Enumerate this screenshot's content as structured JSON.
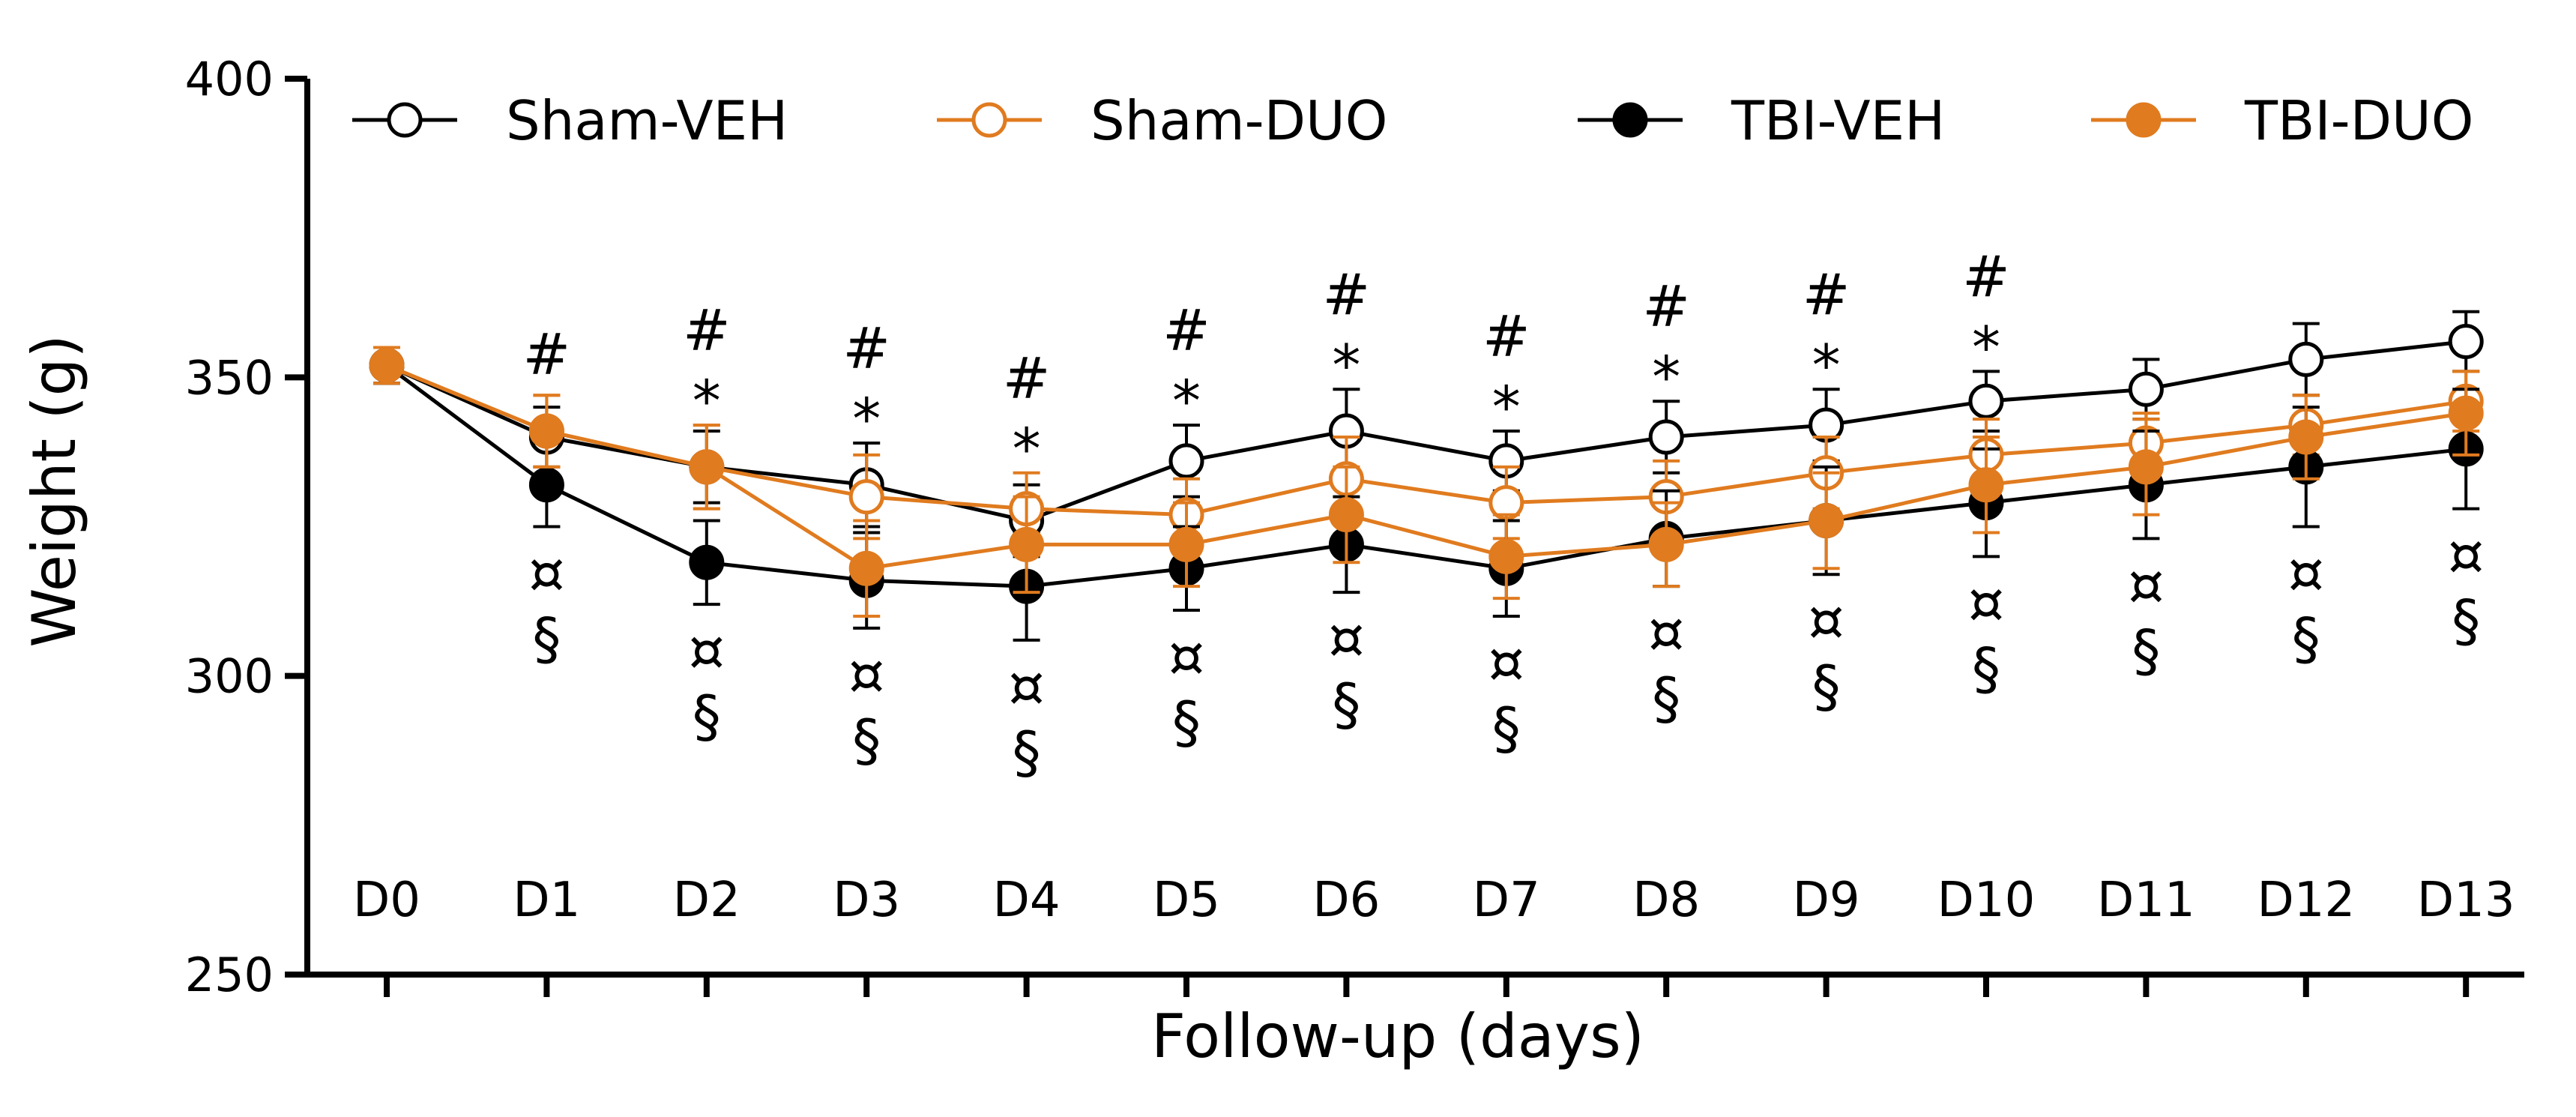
{
  "chart_data": {
    "type": "line",
    "ylabel": "Weight (g)",
    "xlabel": "Follow-up (days)",
    "ylim": [
      250,
      400
    ],
    "yticks": [
      250,
      300,
      350,
      400
    ],
    "categories": [
      "D0",
      "D1",
      "D2",
      "D3",
      "D4",
      "D5",
      "D6",
      "D7",
      "D8",
      "D9",
      "D10",
      "D11",
      "D12",
      "D13"
    ],
    "legend_position": "top",
    "series": [
      {
        "name": "Sham-VEH",
        "color": "#000000",
        "filled": false,
        "values": [
          352,
          340,
          335,
          332,
          326,
          336,
          341,
          336,
          340,
          342,
          346,
          348,
          353,
          356
        ],
        "errors": [
          3,
          5,
          6,
          7,
          6,
          6,
          7,
          5,
          6,
          6,
          5,
          5,
          6,
          5
        ]
      },
      {
        "name": "Sham-DUO",
        "color": "#E07B1F",
        "filled": false,
        "values": [
          352,
          341,
          335,
          330,
          328,
          327,
          333,
          329,
          330,
          334,
          337,
          339,
          342,
          346
        ],
        "errors": [
          3,
          6,
          7,
          7,
          6,
          6,
          7,
          6,
          6,
          6,
          6,
          5,
          5,
          5
        ]
      },
      {
        "name": "TBI-VEH",
        "color": "#000000",
        "filled": true,
        "values": [
          352,
          332,
          319,
          316,
          315,
          318,
          322,
          318,
          323,
          326,
          329,
          332,
          335,
          338
        ],
        "errors": [
          3,
          7,
          7,
          8,
          9,
          7,
          8,
          8,
          8,
          9,
          9,
          9,
          10,
          10
        ]
      },
      {
        "name": "TBI-DUO",
        "color": "#E07B1F",
        "filled": true,
        "values": [
          352,
          341,
          335,
          318,
          322,
          322,
          327,
          320,
          322,
          326,
          332,
          335,
          340,
          344
        ],
        "errors": [
          3,
          6,
          7,
          8,
          8,
          7,
          8,
          7,
          7,
          8,
          8,
          8,
          7,
          7
        ]
      }
    ],
    "annotations": [
      {
        "category": "D1",
        "above": [
          "#"
        ],
        "below": [
          "¤",
          "§"
        ]
      },
      {
        "category": "D2",
        "above": [
          "#",
          "*"
        ],
        "below": [
          "¤",
          "§"
        ]
      },
      {
        "category": "D3",
        "above": [
          "#",
          "*"
        ],
        "below": [
          "¤",
          "§"
        ]
      },
      {
        "category": "D4",
        "above": [
          "#",
          "*"
        ],
        "below": [
          "¤",
          "§"
        ]
      },
      {
        "category": "D5",
        "above": [
          "#",
          "*"
        ],
        "below": [
          "¤",
          "§"
        ]
      },
      {
        "category": "D6",
        "above": [
          "#",
          "*"
        ],
        "below": [
          "¤",
          "§"
        ]
      },
      {
        "category": "D7",
        "above": [
          "#",
          "*"
        ],
        "below": [
          "¤",
          "§"
        ]
      },
      {
        "category": "D8",
        "above": [
          "#",
          "*"
        ],
        "below": [
          "¤",
          "§"
        ]
      },
      {
        "category": "D9",
        "above": [
          "#",
          "*"
        ],
        "below": [
          "¤",
          "§"
        ]
      },
      {
        "category": "D10",
        "above": [
          "#",
          "*"
        ],
        "below": [
          "¤",
          "§"
        ]
      },
      {
        "category": "D11",
        "above": [],
        "below": [
          "¤",
          "§"
        ]
      },
      {
        "category": "D12",
        "above": [],
        "below": [
          "¤",
          "§"
        ]
      },
      {
        "category": "D13",
        "above": [],
        "below": [
          "¤",
          "§"
        ]
      }
    ]
  }
}
